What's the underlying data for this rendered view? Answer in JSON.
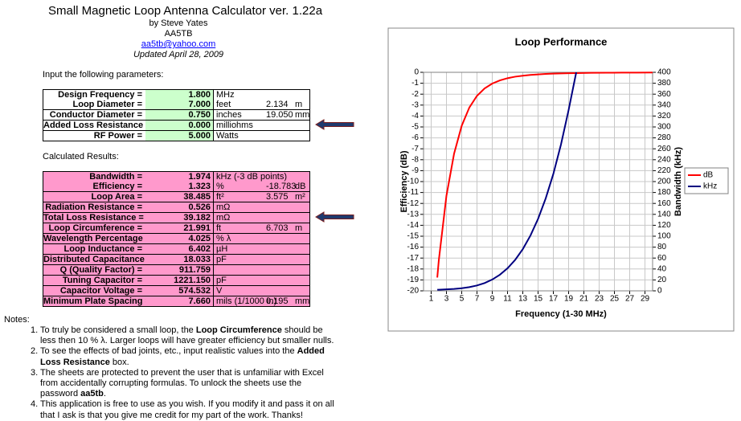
{
  "header": {
    "title": "Small Magnetic Loop Antenna Calculator ver. 1.22a",
    "author": "by Steve Yates",
    "callsign": "AA5TB",
    "email": "aa5tb@yahoo.com",
    "updated": "Updated April 28, 2009"
  },
  "inputs": {
    "heading": "Input the following parameters:",
    "rows": [
      {
        "label": "Design Frequency =",
        "value": "1.800",
        "unit": "MHz"
      },
      {
        "label": "Loop Diameter =",
        "value": "7.000",
        "unit": "feet",
        "value2": "2.134",
        "unit2": "m"
      },
      {
        "label": "Conductor Diameter =",
        "value": "0.750",
        "unit": "inches",
        "value2": "19.050",
        "unit2": "mm"
      },
      {
        "label": "Added Loss Resistance =",
        "value": "0.000",
        "unit": "milliohms"
      },
      {
        "label": "RF Power =",
        "value": "5.000",
        "unit": "Watts"
      }
    ]
  },
  "results": {
    "heading": "Calculated Results:",
    "rows": [
      {
        "label": "Bandwidth =",
        "value": "1.974",
        "unit": "kHz (-3 dB points)"
      },
      {
        "label": "Efficiency =",
        "value": "1.323",
        "unit": "%",
        "value2": "-18.783",
        "unit2": "dB"
      },
      {
        "label": "Loop Area =",
        "value": "38.485",
        "unit": "ft²",
        "value2": "3.575",
        "unit2": "m²"
      },
      {
        "label": "Radiation Resistance =",
        "value": "0.526",
        "unit": "mΩ"
      },
      {
        "label": "Total Loss Resistance =",
        "value": "39.182",
        "unit": "mΩ"
      },
      {
        "label": "Loop Circumference =",
        "value": "21.991",
        "unit": "ft",
        "value2": "6.703",
        "unit2": "m"
      },
      {
        "label": "Wavelength Percentage =",
        "value": "4.025",
        "unit": "% λ"
      },
      {
        "label": "Loop Inductance =",
        "value": "6.402",
        "unit": "µH"
      },
      {
        "label": "Distributed Capacitance =",
        "value": "18.033",
        "unit": "pF"
      },
      {
        "label": "Q (Quality Factor) =",
        "value": "911.759"
      },
      {
        "label": "Tuning Capacitor =",
        "value": "1221.150",
        "unit": "pF"
      },
      {
        "label": "Capacitor Voltage =",
        "value": "574.532",
        "unit": "V"
      },
      {
        "label": "Minimum Plate Spacing =",
        "value": "7.660",
        "unit": "mils (1/1000 in)",
        "value2": "0.195",
        "unit2": "mm"
      }
    ]
  },
  "notes": {
    "heading": "Notes:",
    "items": [
      [
        {
          "text": "1. To truly be considered a small loop, the "
        },
        {
          "text": "Loop Circumference",
          "bold": true
        },
        {
          "text": " should be less then 10 % λ.  Larger loops will have greater efficiency but smaller nulls."
        }
      ],
      [
        {
          "text": "2. To see the effects of bad joints, etc., input realistic values into the "
        },
        {
          "text": "Added Loss Resistance",
          "bold": true
        },
        {
          "text": " box."
        }
      ],
      [
        {
          "text": "3. The sheets are protected to prevent the user that is unfamiliar with Excel from accidentally corrupting formulas.  To unlock the sheets use the password "
        },
        {
          "text": "aa5tb",
          "bold": true
        },
        {
          "text": "."
        }
      ],
      [
        {
          "text": "4. This application is free to use as you wish.  If you modify it and pass it on all that I ask is that you give me credit for my part of the work. Thanks!"
        }
      ]
    ]
  },
  "chart_data": {
    "type": "line",
    "title": "Loop Performance",
    "x_label": "Frequency (1-30 MHz)",
    "y_label": "Efficiency (dB)",
    "y2_label": "Bandwidth (kHz)",
    "x": [
      1.8,
      2,
      3,
      4,
      5,
      6,
      7,
      8,
      9,
      10,
      11,
      12,
      13,
      14,
      15,
      16,
      17,
      18,
      19,
      20,
      22,
      24,
      26,
      28,
      30
    ],
    "series": [
      {
        "name": "dB",
        "color": "#ff0000",
        "values": [
          -18.78,
          -17.2,
          -11.29,
          -7.44,
          -4.89,
          -3.22,
          -2.15,
          -1.47,
          -1.03,
          -0.74,
          -0.54,
          -0.4,
          -0.31,
          -0.24,
          -0.19,
          -0.15,
          -0.12,
          -0.1,
          -0.08,
          -0.07,
          -0.05,
          -0.04,
          -0.03,
          -0.03,
          -0.02
        ]
      },
      {
        "name": "kHz",
        "color": "#000080",
        "axis": "y2",
        "values": [
          1.97,
          2.09,
          2.72,
          3.54,
          4.8,
          6.78,
          9.83,
          14.3,
          20.7,
          29.5,
          41.3,
          56.7,
          76.4,
          101.2,
          131.8,
          169.2,
          214,
          267.8,
          331,
          400,
          null,
          null,
          null,
          null,
          null
        ]
      }
    ],
    "xlim": [
      0,
      30
    ],
    "xticks": [
      1,
      3,
      5,
      7,
      9,
      11,
      13,
      15,
      17,
      19,
      21,
      23,
      25,
      27,
      29
    ],
    "ylim": [
      -20,
      0
    ],
    "yticks": [
      -20,
      -19,
      -18,
      -17,
      -16,
      -15,
      -14,
      -13,
      -12,
      -11,
      -10,
      -9,
      -8,
      -7,
      -6,
      -5,
      -4,
      -3,
      -2,
      -1,
      0
    ],
    "y2lim": [
      0,
      400
    ],
    "y2ticks": [
      0,
      20,
      40,
      60,
      80,
      100,
      120,
      140,
      160,
      180,
      200,
      220,
      240,
      260,
      280,
      300,
      320,
      340,
      360,
      380,
      400
    ],
    "grid": true,
    "legend": "right"
  }
}
